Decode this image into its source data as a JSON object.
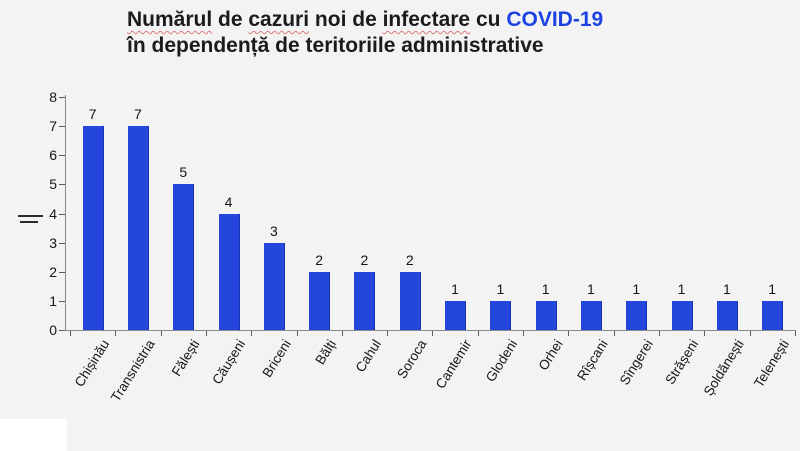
{
  "title": {
    "line1_segments": [
      {
        "text": "Numărul",
        "style": "misspelled"
      },
      {
        "text": " de ",
        "style": "plain"
      },
      {
        "text": "cazuri",
        "style": "misspelled"
      },
      {
        "text": " noi de ",
        "style": "plain"
      },
      {
        "text": "infectare",
        "style": "misspelled"
      },
      {
        "text": " cu ",
        "style": "plain"
      },
      {
        "text": "COVID-19",
        "style": "accent"
      }
    ],
    "line2": "în dependență de teritoriile administrative"
  },
  "chart_data": {
    "type": "bar",
    "title": "Numărul de cazuri noi de infectare cu COVID-19 în dependență de teritoriile administrative",
    "categories": [
      "Chișinău",
      "Transnistria",
      "Fălești",
      "Căușeni",
      "Briceni",
      "Bălți",
      "Cahul",
      "Soroca",
      "Cantemir",
      "Glodeni",
      "Orhei",
      "Rîșcani",
      "Sîngerei",
      "Strășeni",
      "Șoldănești",
      "Telenești"
    ],
    "values": [
      7,
      7,
      5,
      4,
      3,
      2,
      2,
      2,
      1,
      1,
      1,
      1,
      1,
      1,
      1,
      1
    ],
    "xlabel": "",
    "ylabel": "",
    "ylim": [
      0,
      8
    ],
    "yticks": [
      0,
      1,
      2,
      3,
      4,
      5,
      6,
      7,
      8
    ],
    "grid": false,
    "legend": false,
    "value_labels_shown": true,
    "x_label_rotation_deg": -58
  },
  "colors": {
    "background": "#f3f3f4",
    "bar": "#2546dd",
    "title_text": "#1b1b1b",
    "title_accent": "#1d42e2",
    "misspell_underline": "#e07a7a",
    "axis_line": "#8a8a8a",
    "tick": "#5a5a5a",
    "text": "#151515",
    "corner_box": "#ffffff"
  }
}
